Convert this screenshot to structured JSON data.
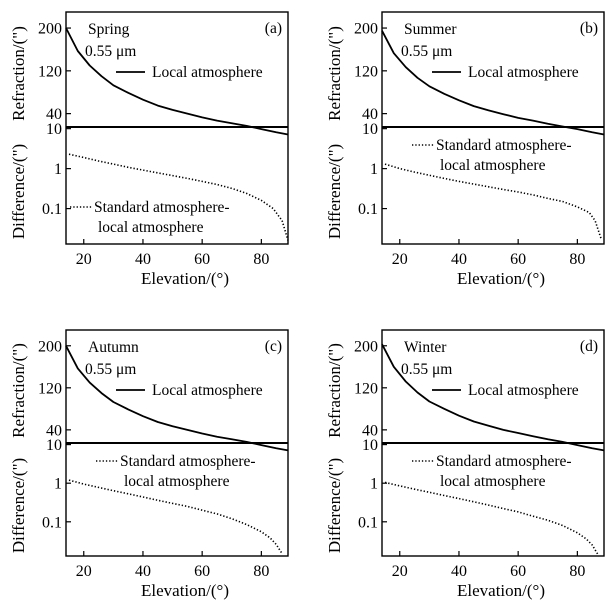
{
  "figure": {
    "x_label": "Elevation/(°)",
    "top_y_label": "Refraction/(\")",
    "bottom_y_label": "Difference/(\")",
    "local_legend": "Local atmosphere",
    "diff_legend_line1": "Standard atmosphere-",
    "diff_legend_line2": "local atmosphere",
    "colors": {
      "line": "#000000",
      "background": "#ffffff"
    }
  },
  "chart_data": [
    {
      "type": "line",
      "panel": "(a)",
      "season": "Spring",
      "wavelength": "0.55 μm",
      "xlim": [
        14,
        89
      ],
      "x_ticks": [
        20,
        40,
        60,
        80
      ],
      "xlabel": "Elevation/(°)",
      "top": {
        "ylabel": "Refraction/(\")",
        "ylim": [
          15,
          230
        ],
        "y_ticks": [
          40,
          120,
          200
        ],
        "series": [
          {
            "name": "Local atmosphere",
            "style": "solid",
            "x": [
              14,
              18,
              22,
              26,
              30,
              35,
              40,
              45,
              50,
              55,
              60,
              65,
              70,
              75,
              80,
              85,
              89
            ],
            "y": [
              200,
              157,
              130,
              110,
              93,
              79,
              66,
              55,
              47,
              40,
              33,
              27,
              22,
              17,
              11,
              5,
              1
            ]
          }
        ]
      },
      "bottom": {
        "ylabel": "Difference/(\")",
        "scale": "log",
        "ylim": [
          0.013,
          11
        ],
        "y_ticks": [
          0.1,
          1,
          10
        ],
        "series": [
          {
            "name": "Standard atmosphere-local atmosphere",
            "style": "dotted",
            "x": [
              15,
              20,
              25,
              30,
              35,
              40,
              45,
              50,
              55,
              60,
              65,
              70,
              75,
              80,
              84,
              87,
              89
            ],
            "y": [
              2.3,
              1.9,
              1.55,
              1.3,
              1.08,
              0.92,
              0.78,
              0.67,
              0.57,
              0.48,
              0.4,
              0.32,
              0.24,
              0.16,
              0.1,
              0.05,
              0.016
            ]
          }
        ]
      }
    },
    {
      "type": "line",
      "panel": "(b)",
      "season": "Summer",
      "wavelength": "0.55 μm",
      "xlim": [
        14,
        89
      ],
      "x_ticks": [
        20,
        40,
        60,
        80
      ],
      "xlabel": "Elevation/(°)",
      "top": {
        "ylabel": "Refraction/(\")",
        "ylim": [
          15,
          230
        ],
        "y_ticks": [
          40,
          120,
          200
        ],
        "series": [
          {
            "name": "Local atmosphere",
            "style": "solid",
            "x": [
              14,
              18,
              22,
              26,
              30,
              35,
              40,
              45,
              50,
              55,
              60,
              65,
              70,
              75,
              80,
              85,
              89
            ],
            "y": [
              195,
              153,
              127,
              107,
              91,
              77,
              65,
              54,
              46,
              39,
              32,
              27,
              21,
              16,
              11,
              5,
              1
            ]
          }
        ]
      },
      "bottom": {
        "ylabel": "Difference/(\")",
        "scale": "log",
        "ylim": [
          0.013,
          11
        ],
        "y_ticks": [
          0.1,
          1,
          10
        ],
        "series": [
          {
            "name": "Standard atmosphere-local atmosphere",
            "style": "dotted",
            "x": [
              15,
              20,
              25,
              30,
              35,
              40,
              45,
              50,
              55,
              60,
              65,
              70,
              75,
              80,
              84,
              86,
              88
            ],
            "y": [
              1.3,
              1.0,
              0.82,
              0.68,
              0.57,
              0.48,
              0.41,
              0.35,
              0.3,
              0.26,
              0.22,
              0.18,
              0.15,
              0.11,
              0.08,
              0.05,
              0.018
            ]
          }
        ]
      }
    },
    {
      "type": "line",
      "panel": "(c)",
      "season": "Autumn",
      "wavelength": "0.55 μm",
      "xlim": [
        14,
        89
      ],
      "x_ticks": [
        20,
        40,
        60,
        80
      ],
      "xlabel": "Elevation/(°)",
      "top": {
        "ylabel": "Refraction/(\")",
        "ylim": [
          15,
          230
        ],
        "y_ticks": [
          40,
          120,
          200
        ],
        "series": [
          {
            "name": "Local atmosphere",
            "style": "solid",
            "x": [
              14,
              18,
              22,
              26,
              30,
              35,
              40,
              45,
              50,
              55,
              60,
              65,
              70,
              75,
              80,
              85,
              89
            ],
            "y": [
              200,
              157,
              130,
              110,
              93,
              79,
              66,
              55,
              47,
              40,
              33,
              27,
              22,
              17,
              11,
              5,
              1
            ]
          }
        ]
      },
      "bottom": {
        "ylabel": "Difference/(\")",
        "scale": "log",
        "ylim": [
          0.013,
          11
        ],
        "y_ticks": [
          0.1,
          1,
          10
        ],
        "series": [
          {
            "name": "Standard atmosphere-local atmosphere",
            "style": "dotted",
            "x": [
              15,
              20,
              25,
              30,
              35,
              40,
              45,
              50,
              55,
              60,
              65,
              70,
              75,
              80,
              83,
              85,
              87
            ],
            "y": [
              1.2,
              0.95,
              0.78,
              0.64,
              0.53,
              0.44,
              0.36,
              0.3,
              0.25,
              0.2,
              0.16,
              0.12,
              0.085,
              0.055,
              0.038,
              0.026,
              0.015
            ]
          }
        ]
      }
    },
    {
      "type": "line",
      "panel": "(d)",
      "season": "Winter",
      "wavelength": "0.55 μm",
      "xlim": [
        14,
        89
      ],
      "x_ticks": [
        20,
        40,
        60,
        80
      ],
      "xlabel": "Elevation/(°)",
      "top": {
        "ylabel": "Refraction/(\")",
        "ylim": [
          15,
          230
        ],
        "y_ticks": [
          40,
          120,
          200
        ],
        "series": [
          {
            "name": "Local atmosphere",
            "style": "solid",
            "x": [
              14,
              18,
              22,
              26,
              30,
              35,
              40,
              45,
              50,
              55,
              60,
              65,
              70,
              75,
              80,
              85,
              89
            ],
            "y": [
              203,
              160,
              132,
              111,
              94,
              80,
              67,
              56,
              48,
              40,
              34,
              28,
              22,
              17,
              11,
              5,
              1
            ]
          }
        ]
      },
      "bottom": {
        "ylabel": "Difference/(\")",
        "scale": "log",
        "ylim": [
          0.013,
          11
        ],
        "y_ticks": [
          0.1,
          1,
          10
        ],
        "series": [
          {
            "name": "Standard atmosphere-local atmosphere",
            "style": "dotted",
            "x": [
              15,
              20,
              25,
              30,
              35,
              40,
              45,
              50,
              55,
              60,
              65,
              70,
              75,
              80,
              83,
              85,
              87
            ],
            "y": [
              1.05,
              0.85,
              0.7,
              0.58,
              0.48,
              0.4,
              0.33,
              0.27,
              0.22,
              0.18,
              0.14,
              0.11,
              0.08,
              0.052,
              0.036,
              0.025,
              0.014
            ]
          }
        ]
      }
    }
  ]
}
